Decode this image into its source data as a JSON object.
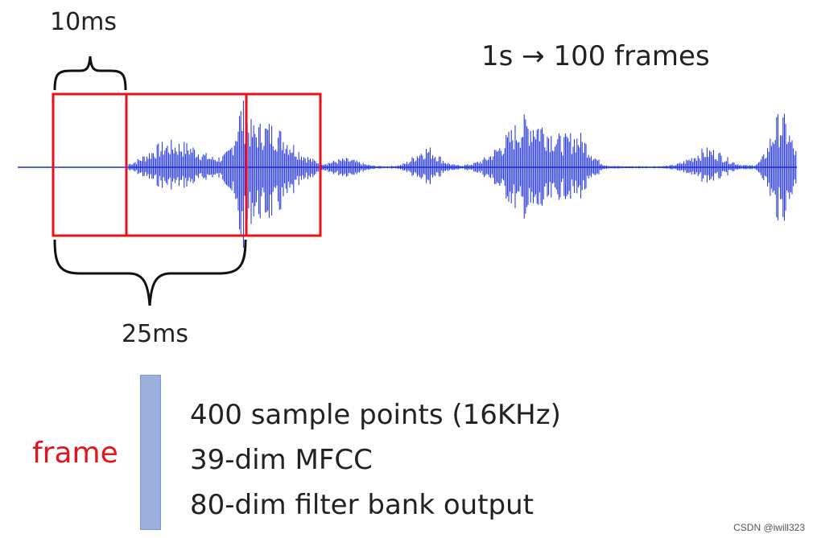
{
  "labels": {
    "hop": "10ms",
    "window": "25ms",
    "rate": "1s → 100 frames",
    "frame": "frame"
  },
  "frame_properties": [
    "400 sample points (16KHz)",
    "39-dim MFCC",
    "80-dim filter bank output"
  ],
  "watermark": "CSDN @iwill323",
  "colors": {
    "waveform": "#1a2be6",
    "frame_box": "#e8121b",
    "frame_bar": "#9bb0dc",
    "frame_label": "#e8121b"
  }
}
